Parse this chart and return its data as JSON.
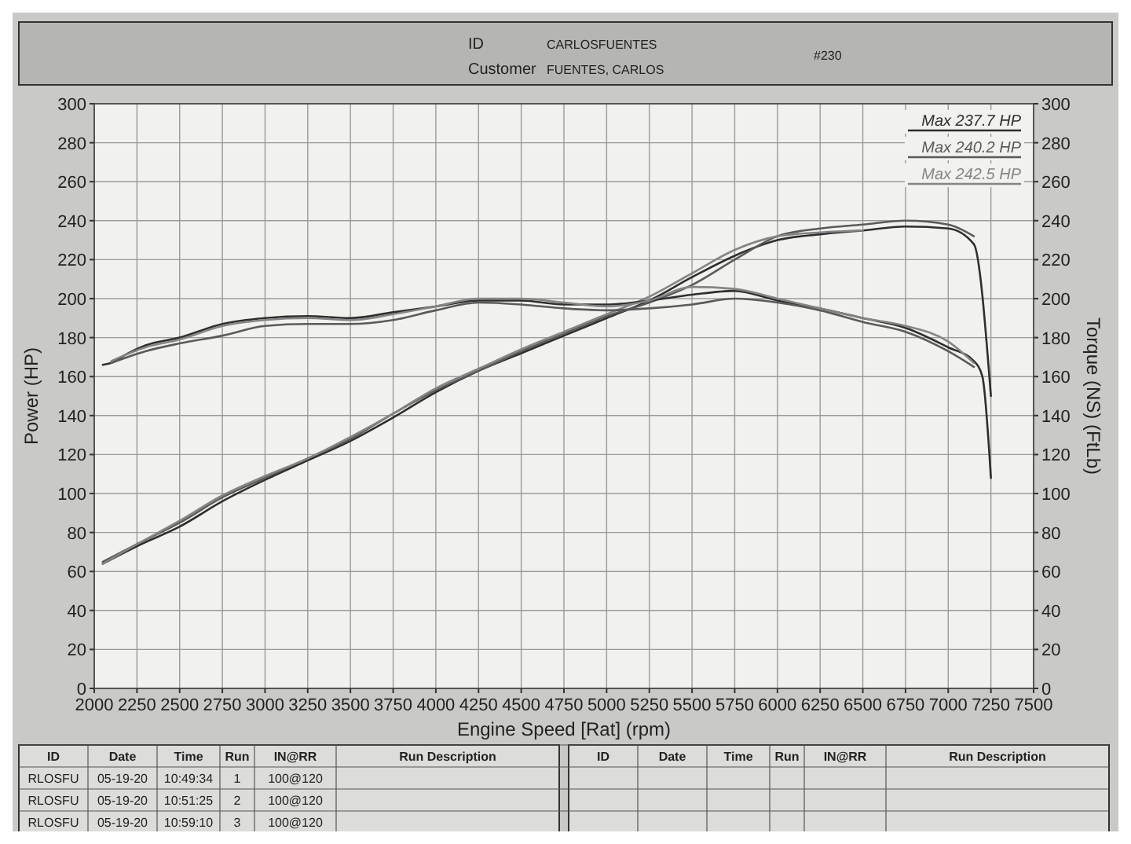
{
  "chart_data": {
    "type": "line",
    "xlabel": "Engine Speed [Rat] (rpm)",
    "ylabel": "Power (HP)",
    "y2label": "Torque (NS) (FtLb)",
    "xlim": [
      2000,
      7500
    ],
    "xticks": [
      2000,
      2250,
      2500,
      2750,
      3000,
      3250,
      3500,
      3750,
      4000,
      4250,
      4500,
      4750,
      5000,
      5250,
      5500,
      5750,
      6000,
      6250,
      6500,
      6750,
      7000,
      7250,
      7500
    ],
    "ylim": [
      0,
      300
    ],
    "yticks": [
      0,
      20,
      40,
      60,
      80,
      100,
      120,
      140,
      160,
      180,
      200,
      220,
      240,
      260,
      280,
      300
    ],
    "y2lim": [
      0,
      300
    ],
    "y2ticks": [
      0,
      20,
      40,
      60,
      80,
      100,
      120,
      140,
      160,
      180,
      200,
      220,
      240,
      260,
      280,
      300
    ],
    "grid": true,
    "legend": "top right",
    "marker": "none",
    "line_style": "solid",
    "annotations": [
      "ID",
      "CARLOSFUENTES",
      "Customer",
      "FUENTES, CARLOS",
      "#230",
      "ID",
      "Date",
      "Time",
      "Run",
      "IN@RR",
      "Run Description",
      "RLOSFU",
      "05-19-20",
      "10:49:34",
      "1",
      "100@120",
      "RLOSFU",
      "05-19-20",
      "10:51:25",
      "2",
      "100@120",
      "RLOSFU",
      "05-19-20",
      "10:59:10",
      "3",
      "100@120",
      "ID",
      "Date",
      "Time",
      "Run",
      "IN@RR",
      "Run Description"
    ],
    "series": [
      {
        "name": "Max 237.7 HP",
        "color": "#2e2e2e",
        "x": [
          2050,
          2250,
          2500,
          2750,
          3000,
          3250,
          3500,
          3750,
          4000,
          4250,
          4500,
          4750,
          5000,
          5250,
          5500,
          5750,
          6000,
          6250,
          6500,
          6750,
          7000,
          7150,
          7250
        ],
        "values": [
          64,
          73,
          83,
          96,
          107,
          117,
          127,
          139,
          152,
          163,
          172,
          181,
          190,
          199,
          211,
          222,
          230,
          233,
          235,
          237,
          236,
          228,
          150
        ]
      },
      {
        "name": "Max 240.2 HP",
        "color": "#5a5a5a",
        "x": [
          2050,
          2250,
          2500,
          2750,
          3000,
          3250,
          3500,
          3750,
          4000,
          4250,
          4500,
          4750,
          5000,
          5250,
          5500,
          5750,
          6000,
          6250,
          6500,
          6750,
          7000,
          7150
        ],
        "values": [
          65,
          74,
          85,
          98,
          108,
          118,
          128,
          141,
          153,
          163,
          173,
          182,
          191,
          198,
          207,
          220,
          232,
          236,
          238,
          240,
          238,
          232
        ]
      },
      {
        "name": "Max 242.5 HP",
        "color": "#858585",
        "x": [
          2050,
          2250,
          2500,
          2750,
          3000,
          3250,
          3500,
          3750,
          4000,
          4250,
          4500,
          4750,
          5000,
          5250,
          5500,
          5750,
          6000,
          6250,
          6500
        ],
        "values": [
          64,
          74,
          86,
          99,
          109,
          118,
          129,
          141,
          154,
          164,
          174,
          183,
          192,
          201,
          213,
          225,
          232,
          234,
          235
        ]
      },
      {
        "color": "#2e2e2e",
        "x": [
          2050,
          2100,
          2200,
          2300,
          2500,
          2750,
          3000,
          3250,
          3500,
          3750,
          4000,
          4250,
          4500,
          4750,
          5000,
          5250,
          5500,
          5750,
          6000,
          6250,
          6500,
          6750,
          7000,
          7150,
          7200,
          7250
        ],
        "values": [
          166,
          167,
          172,
          176,
          180,
          187,
          190,
          191,
          190,
          193,
          196,
          199,
          199,
          197,
          197,
          199,
          202,
          204,
          199,
          195,
          190,
          185,
          175,
          168,
          160,
          108
        ]
      },
      {
        "color": "#5a5a5a",
        "x": [
          2100,
          2300,
          2500,
          2750,
          3000,
          3250,
          3500,
          3750,
          4000,
          4250,
          4500,
          4750,
          5000,
          5250,
          5500,
          5750,
          6000,
          6250,
          6500,
          6750,
          7000,
          7150
        ],
        "values": [
          167,
          173,
          177,
          181,
          186,
          187,
          187,
          189,
          194,
          198,
          197,
          195,
          194,
          195,
          197,
          200,
          198,
          194,
          188,
          183,
          173,
          165
        ]
      },
      {
        "color": "#858585",
        "x": [
          2100,
          2300,
          2500,
          2750,
          3000,
          3250,
          3500,
          3750,
          4000,
          4250,
          4500,
          4750,
          5000,
          5250,
          5500,
          5750,
          6000,
          6250,
          6500,
          6750,
          7000,
          7150
        ],
        "values": [
          168,
          175,
          179,
          186,
          189,
          190,
          189,
          192,
          196,
          200,
          200,
          198,
          196,
          199,
          206,
          205,
          200,
          195,
          190,
          186,
          178,
          167
        ]
      }
    ]
  }
}
